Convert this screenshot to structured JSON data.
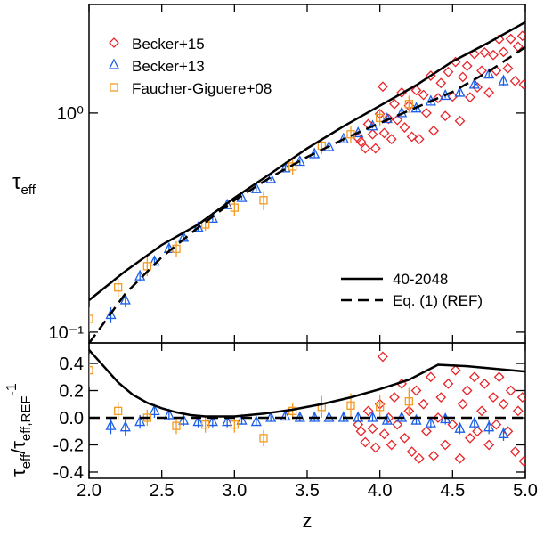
{
  "chart_data": [
    {
      "type": "scatter",
      "y_label": [
        "τ",
        "eff"
      ],
      "log_y": true,
      "xlim": [
        2.0,
        5.0
      ],
      "ylim": [
        0.0893,
        3.13
      ],
      "yticks": [
        {
          "value": 0.1,
          "label": "10⁻¹"
        },
        {
          "value": 1,
          "label": "10⁰"
        }
      ],
      "series": [
        {
          "name": "Becker+15",
          "color": "#e8262b",
          "marker": "diamond",
          "legend": "upper left",
          "x": [
            3.85,
            3.87,
            3.9,
            3.92,
            3.95,
            3.97,
            4.0,
            4.02,
            4.03,
            4.06,
            4.08,
            4.1,
            4.12,
            4.15,
            4.17,
            4.2,
            4.22,
            4.25,
            4.27,
            4.3,
            4.32,
            4.35,
            4.37,
            4.4,
            4.42,
            4.45,
            4.47,
            4.5,
            4.52,
            4.55,
            4.57,
            4.6,
            4.62,
            4.65,
            4.67,
            4.7,
            4.72,
            4.75,
            4.78,
            4.8,
            4.82,
            4.85,
            4.88,
            4.9,
            4.93,
            4.95,
            4.98,
            4.99
          ],
          "values": [
            0.77,
            0.74,
            0.69,
            0.89,
            0.8,
            0.69,
            0.99,
            1.32,
            0.81,
            0.94,
            0.76,
            1.1,
            0.93,
            1.24,
            0.86,
            1.08,
            0.78,
            1.27,
            0.76,
            1.21,
            1.0,
            1.48,
            0.83,
            1.17,
            1.37,
            0.97,
            1.54,
            1.19,
            1.71,
            0.92,
            1.46,
            1.64,
            1.18,
            1.86,
            1.31,
            1.56,
            1.89,
            1.24,
            1.84,
            1.56,
            2.17,
            1.9,
            1.6,
            2.18,
            1.4,
            2.01,
            2.25,
            1.35
          ]
        },
        {
          "name": "Becker+13",
          "color": "#1c5fe8",
          "marker": "triangle",
          "legend": "upper left",
          "x": [
            2.15,
            2.25,
            2.35,
            2.45,
            2.55,
            2.65,
            2.75,
            2.85,
            2.95,
            3.05,
            3.15,
            3.25,
            3.35,
            3.45,
            3.55,
            3.65,
            3.75,
            3.85,
            3.95,
            4.05,
            4.15,
            4.25,
            4.35,
            4.45,
            4.55,
            4.65,
            4.75,
            4.85
          ],
          "values": [
            0.12,
            0.14,
            0.18,
            0.21,
            0.24,
            0.27,
            0.3,
            0.33,
            0.38,
            0.41,
            0.45,
            0.5,
            0.56,
            0.6,
            0.65,
            0.7,
            0.76,
            0.81,
            0.87,
            0.94,
            1.0,
            1.05,
            1.13,
            1.2,
            1.24,
            1.35,
            1.5,
            1.4
          ],
          "errors": [
            0.01,
            0.01,
            0.01,
            0.01,
            0.01,
            0.01,
            0.01,
            0.01,
            0.01,
            0.01,
            0.01,
            0.01,
            0.02,
            0.02,
            0.02,
            0.02,
            0.02,
            0.02,
            0.02,
            0.02,
            0.03,
            0.03,
            0.03,
            0.03,
            0.04,
            0.05,
            0.06,
            0.07
          ]
        },
        {
          "name": "Faucher-Giguere+08",
          "color": "#f59a23",
          "marker": "square",
          "legend": "upper left",
          "x": [
            2.0,
            2.2,
            2.4,
            2.6,
            2.8,
            3.0,
            3.2,
            3.4,
            3.6,
            3.8,
            4.0,
            4.2
          ],
          "values": [
            0.115,
            0.16,
            0.2,
            0.24,
            0.31,
            0.37,
            0.4,
            0.57,
            0.71,
            0.8,
            0.95,
            1.1
          ],
          "errors": [
            0.015,
            0.015,
            0.02,
            0.02,
            0.02,
            0.03,
            0.04,
            0.05,
            0.06,
            0.07,
            0.08,
            0.1
          ]
        },
        {
          "name": "40-2048",
          "color": "#000000",
          "line_style": "solid",
          "legend": "lower right",
          "x": [
            2.0,
            2.25,
            2.5,
            2.75,
            3.0,
            3.25,
            3.5,
            3.75,
            4.0,
            4.25,
            4.5,
            4.75,
            5.0
          ],
          "values": [
            0.14,
            0.19,
            0.25,
            0.31,
            0.41,
            0.53,
            0.69,
            0.87,
            1.08,
            1.34,
            1.72,
            2.1,
            2.6
          ]
        },
        {
          "name": "Eq. (1) (REF)",
          "color": "#000000",
          "line_style": "dashed",
          "legend": "lower right",
          "x": [
            2.0,
            2.25,
            2.5,
            2.75,
            3.0,
            3.25,
            3.5,
            3.75,
            4.0,
            4.25,
            4.5,
            4.75,
            5.0
          ],
          "values": [
            0.089,
            0.15,
            0.22,
            0.3,
            0.4,
            0.51,
            0.63,
            0.76,
            0.9,
            1.06,
            1.25,
            1.55,
            2.0
          ]
        }
      ]
    },
    {
      "type": "scatter",
      "x_label": "z",
      "y_label": [
        "τ",
        "eff",
        "/τ",
        "eff,REF",
        "-1"
      ],
      "xlim": [
        2.0,
        5.0
      ],
      "ylim": [
        -0.446,
        0.551
      ],
      "xticks": [
        {
          "value": 2.0,
          "label": "2.0"
        },
        2.5,
        {
          "value": 3.0,
          "label": "3.0"
        },
        3.5,
        {
          "value": 4.0,
          "label": "4.0"
        },
        4.5,
        {
          "value": 5.0,
          "label": "5.0"
        }
      ],
      "yticks": [
        -0.4,
        -0.2,
        {
          "value": 0,
          "label": "0.0"
        },
        0.2,
        0.4
      ],
      "series": [
        {
          "color": "#e8262b",
          "marker": "diamond",
          "x": [
            3.85,
            3.87,
            3.9,
            3.92,
            3.95,
            3.97,
            4.0,
            4.02,
            4.03,
            4.06,
            4.08,
            4.1,
            4.12,
            4.15,
            4.17,
            4.2,
            4.22,
            4.25,
            4.27,
            4.3,
            4.32,
            4.35,
            4.37,
            4.4,
            4.42,
            4.45,
            4.47,
            4.5,
            4.52,
            4.55,
            4.57,
            4.6,
            4.62,
            4.65,
            4.67,
            4.7,
            4.72,
            4.75,
            4.78,
            4.8,
            4.82,
            4.85,
            4.88,
            4.9,
            4.93,
            4.95,
            4.98,
            4.99
          ],
          "values": [
            -0.05,
            -0.1,
            -0.18,
            0.05,
            -0.08,
            -0.22,
            0.1,
            0.45,
            -0.12,
            0.0,
            -0.2,
            0.15,
            -0.05,
            0.25,
            -0.15,
            0.05,
            -0.25,
            0.2,
            -0.3,
            0.1,
            -0.1,
            0.3,
            -0.28,
            0.0,
            0.15,
            -0.2,
            0.25,
            -0.05,
            0.35,
            -0.3,
            0.1,
            0.2,
            -0.15,
            0.3,
            -0.1,
            0.05,
            0.25,
            -0.2,
            0.15,
            -0.05,
            0.3,
            0.1,
            -0.1,
            0.2,
            -0.25,
            0.05,
            0.15,
            -0.32
          ]
        },
        {
          "color": "#1c5fe8",
          "marker": "triangle",
          "x": [
            2.15,
            2.25,
            2.35,
            2.45,
            2.55,
            2.65,
            2.75,
            2.85,
            2.95,
            3.05,
            3.15,
            3.25,
            3.35,
            3.45,
            3.55,
            3.65,
            3.75,
            3.85,
            3.95,
            4.05,
            4.15,
            4.25,
            4.35,
            4.45,
            4.55,
            4.65,
            4.75,
            4.85
          ],
          "values": [
            -0.06,
            -0.07,
            -0.03,
            0.05,
            0.02,
            -0.02,
            -0.03,
            -0.03,
            -0.03,
            -0.02,
            -0.03,
            0.0,
            0.01,
            0.0,
            0.0,
            0.0,
            0.0,
            0.0,
            0.0,
            -0.02,
            0.0,
            -0.02,
            -0.04,
            -0.01,
            -0.08,
            -0.04,
            -0.07,
            -0.12
          ],
          "errors": [
            0.06,
            0.06,
            0.05,
            0.05,
            0.04,
            0.04,
            0.04,
            0.04,
            0.04,
            0.03,
            0.03,
            0.03,
            0.03,
            0.03,
            0.03,
            0.03,
            0.03,
            0.03,
            0.03,
            0.03,
            0.03,
            0.03,
            0.04,
            0.04,
            0.04,
            0.04,
            0.05,
            0.05
          ]
        },
        {
          "color": "#f59a23",
          "marker": "square",
          "x": [
            2.0,
            2.2,
            2.4,
            2.6,
            2.8,
            3.0,
            3.2,
            3.4,
            3.6,
            3.8,
            4.0,
            4.2
          ],
          "values": [
            0.35,
            0.05,
            0.0,
            -0.06,
            -0.05,
            -0.05,
            -0.15,
            0.05,
            0.08,
            0.09,
            0.08,
            0.12
          ],
          "errors": [
            0.12,
            0.07,
            0.06,
            0.06,
            0.06,
            0.06,
            0.06,
            0.06,
            0.08,
            0.09,
            0.09,
            0.1
          ]
        },
        {
          "color": "#000000",
          "line_style": "solid",
          "x": [
            2.0,
            2.1,
            2.2,
            2.3,
            2.4,
            2.5,
            2.6,
            2.7,
            2.8,
            3.0,
            3.2,
            3.4,
            3.6,
            3.8,
            4.0,
            4.2,
            4.4,
            4.6,
            4.8,
            5.0
          ],
          "values": [
            0.5,
            0.38,
            0.26,
            0.17,
            0.11,
            0.07,
            0.04,
            0.02,
            0.01,
            0.01,
            0.03,
            0.06,
            0.1,
            0.15,
            0.21,
            0.28,
            0.39,
            0.38,
            0.36,
            0.34
          ]
        },
        {
          "color": "#000000",
          "line_style": "dashed",
          "x": [
            2.0,
            5.0
          ],
          "values": [
            0,
            0
          ]
        }
      ]
    }
  ]
}
